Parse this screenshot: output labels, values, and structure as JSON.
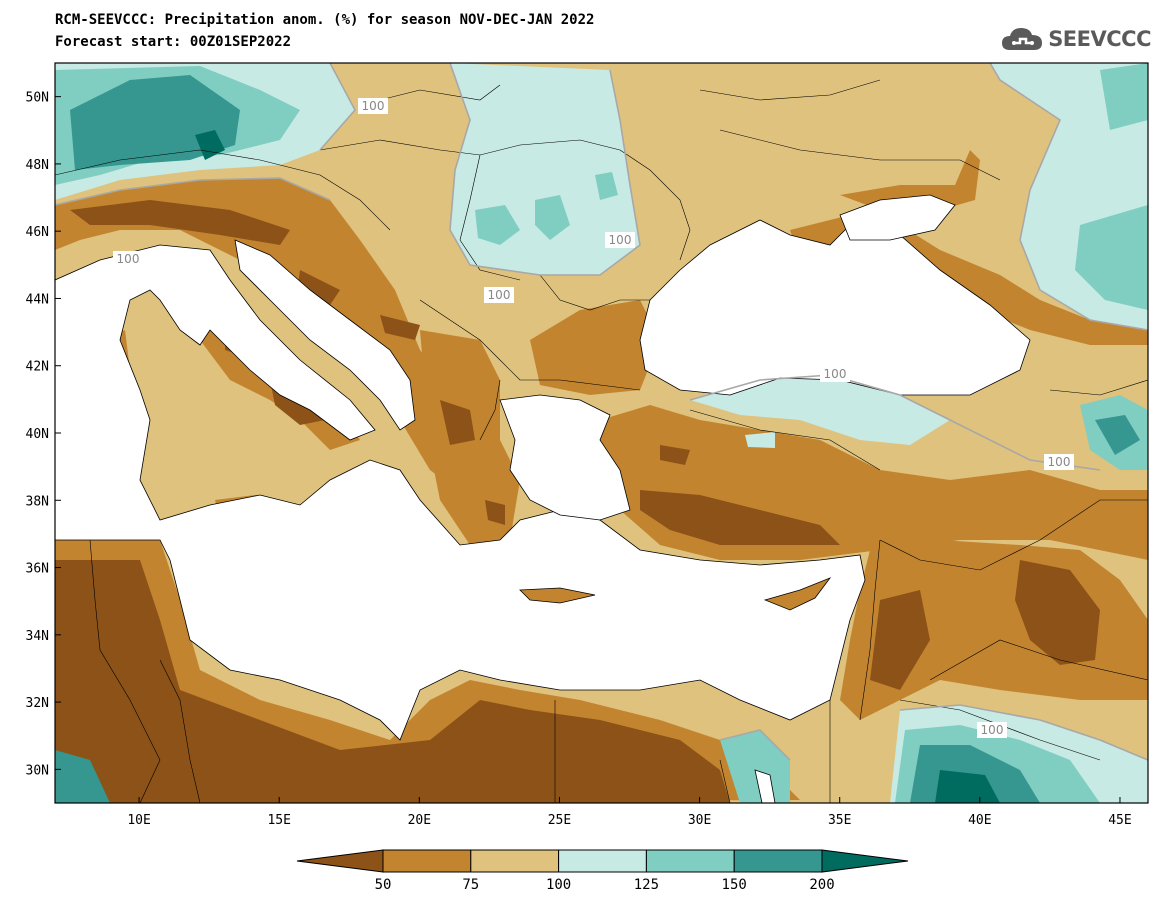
{
  "title": {
    "line1": "RCM-SEEVCCC: Precipitation anom. (%) for season NOV-DEC-JAN 2022",
    "line2": "Forecast start: 00Z01SEP2022"
  },
  "logo": {
    "text": "SEEVCCC",
    "icon": "cloud-icon"
  },
  "map": {
    "lon_range": [
      7,
      46
    ],
    "lat_range": [
      29,
      51
    ],
    "x_ticks": [
      "10E",
      "15E",
      "20E",
      "25E",
      "30E",
      "35E",
      "40E",
      "45E"
    ],
    "y_ticks": [
      "50N",
      "48N",
      "46N",
      "44N",
      "42N",
      "40N",
      "38N",
      "36N",
      "34N",
      "32N",
      "30N"
    ],
    "contour_label": "100",
    "sea_color": "#ffffff"
  },
  "colorbar": {
    "labels": [
      "50",
      "75",
      "100",
      "125",
      "150",
      "200"
    ],
    "colors": [
      "#8c5217",
      "#c38430",
      "#dfc27d",
      "#c7eae4",
      "#80cdc1",
      "#35978f",
      "#006b5f"
    ]
  }
}
